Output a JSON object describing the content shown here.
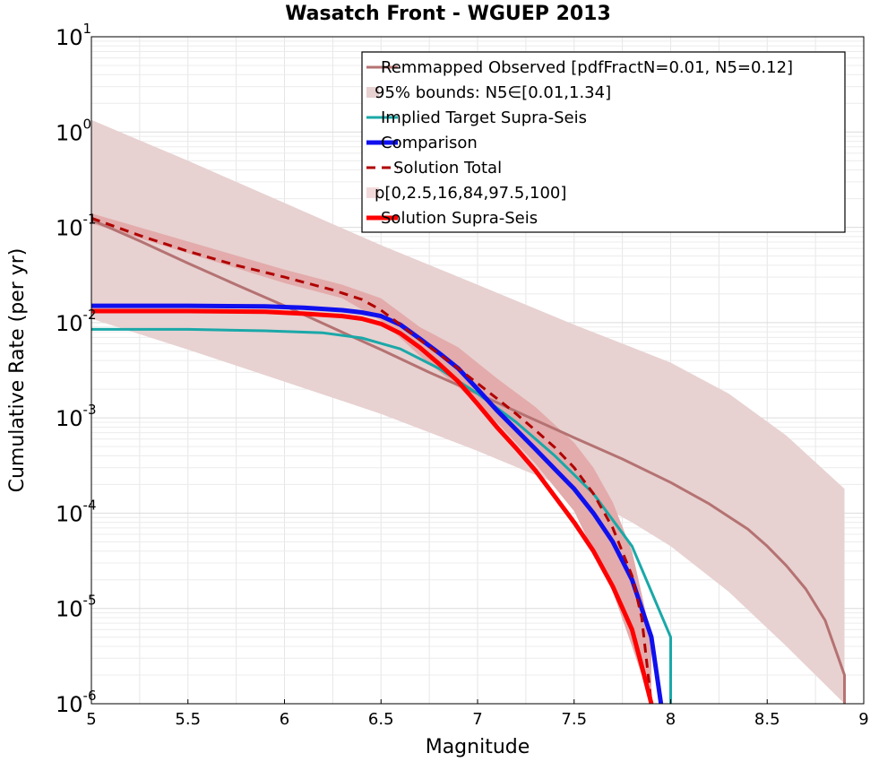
{
  "chart_data": {
    "type": "line",
    "title": "Wasatch Front - WGUEP 2013",
    "xlabel": "Magnitude",
    "ylabel": "Cumulative Rate (per yr)",
    "xlim": [
      5,
      9
    ],
    "ylim": [
      1e-06,
      10
    ],
    "yscale": "log",
    "grid": true,
    "legend_position": "top-right",
    "x_ticks": [
      "5",
      "5.5",
      "6",
      "6.5",
      "7",
      "7.5",
      "8",
      "8.5",
      "9"
    ],
    "y_ticks": [
      {
        "base": "10",
        "exp": "-6",
        "value": 1e-06
      },
      {
        "base": "10",
        "exp": "-5",
        "value": 1e-05
      },
      {
        "base": "10",
        "exp": "-4",
        "value": 0.0001
      },
      {
        "base": "10",
        "exp": "-3",
        "value": 0.001
      },
      {
        "base": "10",
        "exp": "-2",
        "value": 0.01
      },
      {
        "base": "10",
        "exp": "-1",
        "value": 0.1
      },
      {
        "base": "10",
        "exp": "0",
        "value": 1
      },
      {
        "base": "10",
        "exp": "1",
        "value": 10
      }
    ],
    "series": [
      {
        "name": "Remmapped Observed [pdfFractN=0.01, N5=0.12]",
        "kind": "line",
        "color": "#b57272",
        "dash": "",
        "x": [
          5.0,
          5.25,
          5.5,
          5.75,
          6.0,
          6.25,
          6.5,
          6.75,
          7.0,
          7.25,
          7.5,
          7.75,
          8.0,
          8.2,
          8.4,
          8.5,
          8.6,
          8.7,
          8.8,
          8.9,
          8.9
        ],
        "y": [
          0.12,
          0.072,
          0.042,
          0.025,
          0.015,
          0.0088,
          0.0052,
          0.003,
          0.0018,
          0.00105,
          0.00062,
          0.00037,
          0.00021,
          0.000125,
          6.8e-05,
          4.5e-05,
          2.8e-05,
          1.6e-05,
          7.5e-06,
          2e-06,
          1e-06
        ]
      },
      {
        "name": "95% bounds: N5∈[0.01,1.34]",
        "kind": "band",
        "color": "#e8d1d1",
        "x": [
          5.0,
          5.5,
          6.0,
          6.5,
          7.0,
          7.5,
          7.8,
          8.0,
          8.3,
          8.6,
          8.9
        ],
        "upper": [
          1.34,
          0.5,
          0.18,
          0.065,
          0.025,
          0.0095,
          0.0055,
          0.0038,
          0.0018,
          0.00065,
          0.00018
        ],
        "lower": [
          0.011,
          0.0052,
          0.0024,
          0.0011,
          0.00045,
          0.00017,
          8e-05,
          4.5e-05,
          1.5e-05,
          4e-06,
          1e-06
        ]
      },
      {
        "name": "Implied Target Supra-Seis",
        "kind": "line",
        "color": "#1aa8a8",
        "dash": "",
        "x": [
          5.0,
          5.5,
          5.9,
          6.2,
          6.4,
          6.6,
          6.8,
          7.0,
          7.2,
          7.4,
          7.6,
          7.8,
          7.9,
          8.0,
          8.0
        ],
        "y": [
          0.0085,
          0.0085,
          0.0082,
          0.0078,
          0.0069,
          0.0053,
          0.0033,
          0.0018,
          0.0009,
          0.0004,
          0.00016,
          4.5e-05,
          1.5e-05,
          5e-06,
          1e-06
        ]
      },
      {
        "name": "Comparison",
        "kind": "line",
        "color": "#1010ee",
        "dash": "",
        "x": [
          5.0,
          5.5,
          5.9,
          6.1,
          6.3,
          6.4,
          6.5,
          6.6,
          6.7,
          6.8,
          6.9,
          7.0,
          7.1,
          7.2,
          7.3,
          7.4,
          7.5,
          7.6,
          7.7,
          7.8,
          7.9,
          7.95
        ],
        "y": [
          0.015,
          0.015,
          0.0148,
          0.0143,
          0.0135,
          0.0128,
          0.0117,
          0.0095,
          0.0068,
          0.0048,
          0.0033,
          0.002,
          0.0012,
          0.00075,
          0.00047,
          0.00029,
          0.00018,
          0.0001,
          5e-05,
          2e-05,
          5e-06,
          1e-06
        ]
      },
      {
        "name": "Solution Total",
        "kind": "line",
        "color": "#b00000",
        "dash": "10 7",
        "x": [
          5.0,
          5.25,
          5.5,
          5.75,
          6.0,
          6.25,
          6.4,
          6.5,
          6.6,
          6.7,
          6.8,
          6.9,
          7.0,
          7.1,
          7.2,
          7.3,
          7.4,
          7.5,
          7.6,
          7.7,
          7.8,
          7.85,
          7.9
        ],
        "y": [
          0.125,
          0.082,
          0.056,
          0.04,
          0.03,
          0.022,
          0.0175,
          0.0135,
          0.0095,
          0.0066,
          0.0047,
          0.0033,
          0.0023,
          0.0016,
          0.0011,
          0.00074,
          0.00049,
          0.0003,
          0.00016,
          7e-05,
          2.2e-05,
          8e-06,
          1e-06
        ]
      },
      {
        "name": "p[0,2.5,16,84,97.5,100]",
        "kind": "band",
        "color": "#e3abab",
        "x": [
          5.0,
          6.0,
          6.3,
          6.5,
          6.7,
          6.9,
          7.1,
          7.3,
          7.5,
          7.6,
          7.7,
          7.8,
          7.9
        ],
        "upper": [
          0.14,
          0.036,
          0.025,
          0.018,
          0.009,
          0.0055,
          0.0026,
          0.0013,
          0.00055,
          0.0003,
          0.00013,
          4e-05,
          5e-06
        ],
        "lower": [
          0.11,
          0.026,
          0.018,
          0.0105,
          0.0045,
          0.0021,
          0.0009,
          0.00033,
          0.000105,
          4e-05,
          1.5e-05,
          4e-06,
          1e-06
        ]
      },
      {
        "name": "Solution Supra-Seis",
        "kind": "line",
        "color": "#ff0000",
        "dash": "",
        "x": [
          5.0,
          5.5,
          5.9,
          6.1,
          6.3,
          6.4,
          6.5,
          6.6,
          6.7,
          6.8,
          6.9,
          7.0,
          7.1,
          7.2,
          7.3,
          7.4,
          7.5,
          7.6,
          7.7,
          7.8,
          7.85,
          7.9
        ],
        "y": [
          0.0132,
          0.0132,
          0.013,
          0.0124,
          0.0117,
          0.011,
          0.0097,
          0.0077,
          0.0055,
          0.0037,
          0.0024,
          0.0014,
          0.0008,
          0.00048,
          0.00028,
          0.00015,
          8e-05,
          4e-05,
          1.7e-05,
          6e-06,
          2.5e-06,
          1e-06
        ]
      }
    ],
    "legend": [
      {
        "label": "Remmapped Observed [pdfFractN=0.01, N5=0.12]",
        "symbol": "line",
        "color": "#b57272",
        "width": 3,
        "dash": ""
      },
      {
        "label": "95% bounds: N5∈[0.01,1.34]",
        "symbol": "patch",
        "color": "#e8d1d1"
      },
      {
        "label": "Implied Target Supra-Seis",
        "symbol": "line",
        "color": "#1aa8a8",
        "width": 3,
        "dash": ""
      },
      {
        "label": "Comparison",
        "symbol": "line",
        "color": "#1010ee",
        "width": 5,
        "dash": ""
      },
      {
        "label": "Solution Total",
        "symbol": "line",
        "color": "#b00000",
        "width": 3,
        "dash": "10 7"
      },
      {
        "label": "p[0,2.5,16,84,97.5,100]",
        "symbol": "patch",
        "color": "#f3dada"
      },
      {
        "label": "Solution Supra-Seis",
        "symbol": "line",
        "color": "#ff0000",
        "width": 5,
        "dash": ""
      }
    ]
  }
}
